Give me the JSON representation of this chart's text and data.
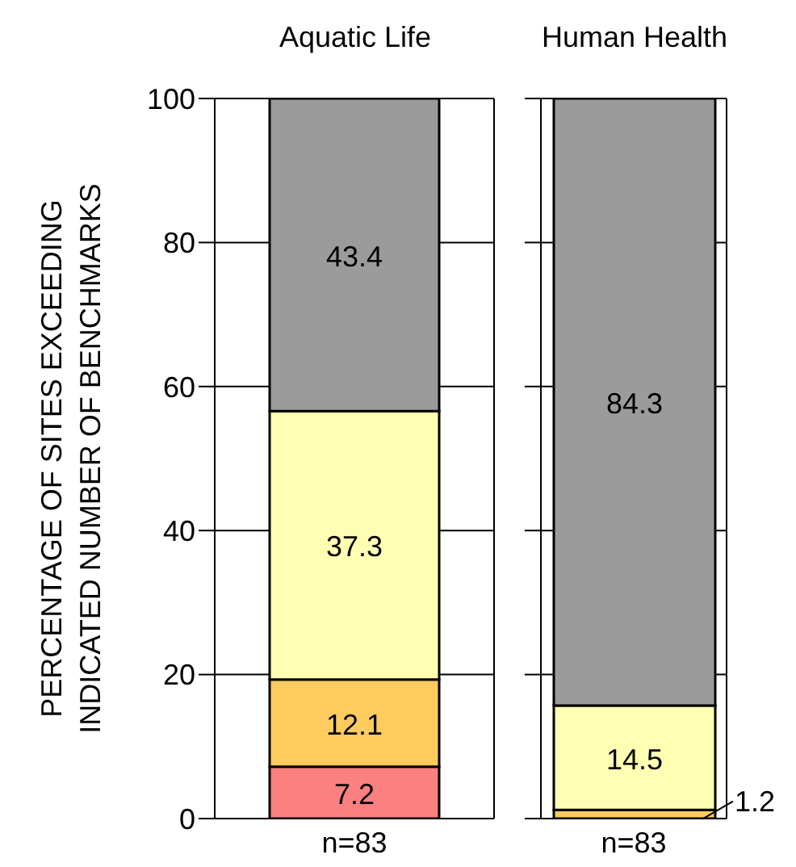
{
  "chart_data": [
    {
      "type": "bar",
      "title": "Aquatic Life",
      "ylabel": "PERCENTAGE OF SITES EXCEEDING INDICATED NUMBER OF BENCHMARKS",
      "categories": [
        "n=83"
      ],
      "stacked": true,
      "ylim": [
        0,
        100
      ],
      "yticks": [
        0,
        20,
        40,
        60,
        80,
        100
      ],
      "grid": "y",
      "data_labels": true,
      "legend": false,
      "series": [
        {
          "color": "#fb8080",
          "values": [
            7.2
          ]
        },
        {
          "color": "#fdcb5e",
          "values": [
            12.1
          ]
        },
        {
          "color": "#ffffb3",
          "values": [
            37.3
          ]
        },
        {
          "color": "#9b9b9b",
          "values": [
            43.4
          ]
        }
      ]
    },
    {
      "type": "bar",
      "title": "Human Health",
      "categories": [
        "n=83"
      ],
      "stacked": true,
      "ylim": [
        0,
        100
      ],
      "yticks": [
        0,
        20,
        40,
        60,
        80,
        100
      ],
      "grid": "y",
      "data_labels": true,
      "legend": false,
      "tick_labels": "x",
      "series": [
        {
          "color": "#fb8080",
          "values": [
            null
          ]
        },
        {
          "color": "#fdcb5e",
          "values": [
            1.2
          ]
        },
        {
          "color": "#ffffb3",
          "values": [
            14.5
          ]
        },
        {
          "color": "#9b9b9b",
          "values": [
            84.3
          ]
        }
      ]
    }
  ]
}
